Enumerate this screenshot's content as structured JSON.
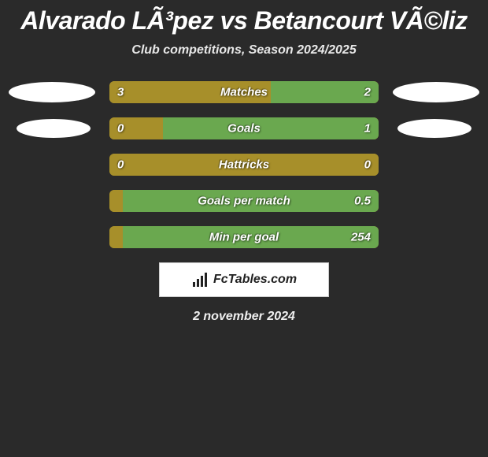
{
  "title": "Alvarado LÃ³pez vs Betancourt VÃ©liz",
  "subtitle": "Club competitions, Season 2024/2025",
  "date": "2 november 2024",
  "footer_brand": "FcTables.com",
  "colors": {
    "bar_left": "#a78f2a",
    "bar_right": "#6aa84f",
    "bar_empty": "#a78f2a",
    "ellipse": "#ffffff",
    "background": "#2a2a2a"
  },
  "rows": [
    {
      "label": "Matches",
      "left_value": "3",
      "right_value": "2",
      "left_pct": 60,
      "right_pct": 40,
      "show_ellipses": true,
      "ellipse_narrow": false
    },
    {
      "label": "Goals",
      "left_value": "0",
      "right_value": "1",
      "left_pct": 20,
      "right_pct": 80,
      "show_ellipses": true,
      "ellipse_narrow": true
    },
    {
      "label": "Hattricks",
      "left_value": "0",
      "right_value": "0",
      "left_pct": 100,
      "right_pct": 0,
      "show_ellipses": false
    },
    {
      "label": "Goals per match",
      "left_value": "",
      "right_value": "0.5",
      "left_pct": 5,
      "right_pct": 95,
      "show_ellipses": false
    },
    {
      "label": "Min per goal",
      "left_value": "",
      "right_value": "254",
      "left_pct": 5,
      "right_pct": 95,
      "show_ellipses": false
    }
  ]
}
